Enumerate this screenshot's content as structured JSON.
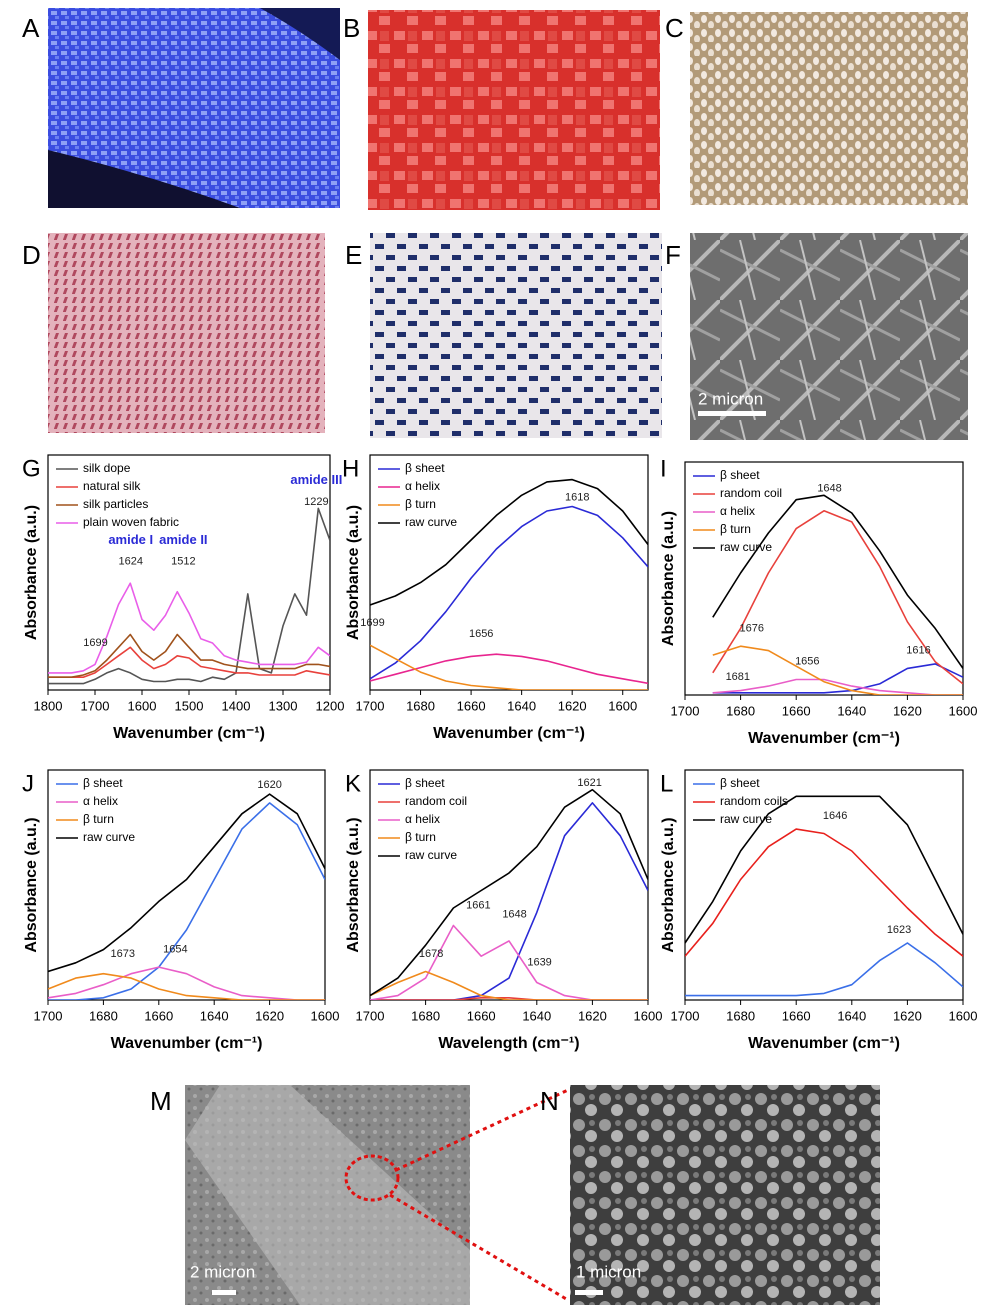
{
  "image_panels": [
    {
      "label": "A"
    },
    {
      "label": "B"
    },
    {
      "label": "C"
    },
    {
      "label": "D"
    },
    {
      "label": "E"
    },
    {
      "label": "F",
      "scale": "2 micron"
    },
    {
      "label": "M",
      "scale": "2 micron"
    },
    {
      "label": "N",
      "scale": "1 micron"
    }
  ],
  "chart_data": [
    {
      "type": "line",
      "panel": "G",
      "xlabel": "Wavenumber (cm⁻¹)",
      "ylabel": "Absorbance (a.u.)",
      "x": [
        1800,
        1775,
        1750,
        1725,
        1700,
        1675,
        1650,
        1625,
        1600,
        1575,
        1550,
        1525,
        1500,
        1475,
        1450,
        1425,
        1400,
        1375,
        1350,
        1325,
        1300,
        1275,
        1250,
        1225,
        1200
      ],
      "xlim": [
        1800,
        1200
      ],
      "xticks": [
        1800,
        1700,
        1600,
        1500,
        1400,
        1300,
        1200
      ],
      "ylim": [
        0,
        1.1
      ],
      "series": [
        {
          "name": "silk dope",
          "color": "#555555",
          "values": [
            0.03,
            0.03,
            0.03,
            0.03,
            0.05,
            0.08,
            0.1,
            0.08,
            0.05,
            0.04,
            0.04,
            0.05,
            0.05,
            0.04,
            0.06,
            0.05,
            0.08,
            0.45,
            0.1,
            0.08,
            0.3,
            0.45,
            0.35,
            0.85,
            0.7
          ]
        },
        {
          "name": "natural silk",
          "color": "#e8413c",
          "values": [
            0.06,
            0.06,
            0.06,
            0.06,
            0.08,
            0.12,
            0.16,
            0.2,
            0.14,
            0.1,
            0.12,
            0.16,
            0.15,
            0.11,
            0.1,
            0.09,
            0.08,
            0.08,
            0.07,
            0.07,
            0.07,
            0.07,
            0.09,
            0.08,
            0.07
          ]
        },
        {
          "name": "silk particles",
          "color": "#a0521c",
          "values": [
            0.06,
            0.06,
            0.06,
            0.07,
            0.09,
            0.14,
            0.2,
            0.26,
            0.18,
            0.14,
            0.18,
            0.26,
            0.2,
            0.14,
            0.14,
            0.12,
            0.11,
            0.1,
            0.1,
            0.1,
            0.1,
            0.1,
            0.12,
            0.12,
            0.11
          ]
        },
        {
          "name": "plain woven fabric",
          "color": "#e95ee9",
          "values": [
            0.08,
            0.08,
            0.08,
            0.09,
            0.12,
            0.25,
            0.4,
            0.5,
            0.33,
            0.28,
            0.35,
            0.46,
            0.36,
            0.24,
            0.22,
            0.16,
            0.14,
            0.13,
            0.12,
            0.12,
            0.12,
            0.12,
            0.13,
            0.2,
            0.16
          ]
        }
      ],
      "annotations": [
        {
          "x": 1699,
          "y": 0.22
        },
        {
          "x": 1624,
          "y": 0.6
        },
        {
          "x": 1512,
          "y": 0.6
        },
        {
          "x": 1229,
          "y": 0.88
        },
        {
          "text": "amide I",
          "x": 1624,
          "y": 0.7,
          "color": "#2b2bd6"
        },
        {
          "text": "amide II",
          "x": 1512,
          "y": 0.7,
          "color": "#2b2bd6"
        },
        {
          "text": "amide III",
          "x": 1229,
          "y": 0.98,
          "color": "#2b2bd6"
        }
      ]
    },
    {
      "type": "line",
      "panel": "H",
      "xlabel": "Wavenumber (cm⁻¹)",
      "ylabel": "Absorbance (a.u.)",
      "x": [
        1700,
        1690,
        1680,
        1670,
        1660,
        1650,
        1640,
        1630,
        1620,
        1610,
        1600,
        1590
      ],
      "xlim": [
        1700,
        1590
      ],
      "xticks": [
        1700,
        1680,
        1660,
        1640,
        1620,
        1600
      ],
      "ylim": [
        0,
        1.05
      ],
      "series": [
        {
          "name": "β sheet",
          "color": "#2a2ad6",
          "values": [
            0.05,
            0.12,
            0.22,
            0.35,
            0.5,
            0.63,
            0.73,
            0.8,
            0.82,
            0.78,
            0.68,
            0.55
          ]
        },
        {
          "name": "α helix",
          "color": "#e8258f",
          "values": [
            0.04,
            0.07,
            0.1,
            0.13,
            0.15,
            0.16,
            0.15,
            0.13,
            0.1,
            0.07,
            0.05,
            0.03
          ]
        },
        {
          "name": "β turn",
          "color": "#f08a1c",
          "values": [
            0.2,
            0.14,
            0.08,
            0.04,
            0.02,
            0.01,
            0,
            0,
            0,
            0,
            0,
            0
          ]
        },
        {
          "name": "raw curve",
          "color": "#000000",
          "values": [
            0.38,
            0.42,
            0.48,
            0.56,
            0.67,
            0.78,
            0.87,
            0.93,
            0.94,
            0.9,
            0.8,
            0.65
          ]
        }
      ],
      "annotations": [
        {
          "x": 1618,
          "y": 0.86
        },
        {
          "x": 1656,
          "y": 0.25
        },
        {
          "x": 1699,
          "y": 0.3
        }
      ]
    },
    {
      "type": "line",
      "panel": "I",
      "xlabel": "Wavenumber (cm⁻¹)",
      "ylabel": "Absorbance (a.u.)",
      "x": [
        1690,
        1680,
        1670,
        1660,
        1650,
        1640,
        1630,
        1620,
        1610,
        1600,
        1690
      ],
      "xlim": [
        1700,
        1600
      ],
      "xticks": [
        1700,
        1680,
        1660,
        1640,
        1620,
        1600
      ],
      "ylim": [
        0,
        1.05
      ],
      "series": [
        {
          "name": "β sheet",
          "color": "#2a2ad6",
          "values": [
            0.01,
            0.01,
            0.01,
            0.01,
            0.01,
            0.02,
            0.05,
            0.12,
            0.14,
            0.08,
            null
          ]
        },
        {
          "name": "random coil",
          "color": "#e8413c",
          "values": [
            0.1,
            0.3,
            0.55,
            0.75,
            0.83,
            0.78,
            0.58,
            0.33,
            0.15,
            0.05,
            null
          ]
        },
        {
          "name": "α helix",
          "color": "#e95ec8",
          "values": [
            0.01,
            0.02,
            0.04,
            0.07,
            0.07,
            0.04,
            0.02,
            0.01,
            0,
            0,
            null
          ]
        },
        {
          "name": "β turn",
          "color": "#f08a1c",
          "values": [
            0.18,
            0.22,
            0.2,
            0.13,
            0.06,
            0.02,
            0,
            0,
            0,
            0,
            null
          ]
        },
        {
          "name": "raw curve",
          "color": "#000000",
          "values": [
            0.35,
            0.55,
            0.73,
            0.88,
            0.9,
            0.82,
            0.65,
            0.45,
            0.3,
            0.12,
            null
          ]
        }
      ],
      "annotations": [
        {
          "x": 1648,
          "y": 0.93
        },
        {
          "x": 1676,
          "y": 0.3
        },
        {
          "x": 1656,
          "y": 0.15
        },
        {
          "x": 1681,
          "y": 0.08
        },
        {
          "x": 1616,
          "y": 0.2
        }
      ]
    },
    {
      "type": "line",
      "panel": "J",
      "xlabel": "Wavenumber (cm⁻¹)",
      "ylabel": "Absorbance (a.u.)",
      "x": [
        1700,
        1690,
        1680,
        1670,
        1660,
        1650,
        1640,
        1630,
        1620,
        1610,
        1600
      ],
      "xlim": [
        1700,
        1600
      ],
      "xticks": [
        1700,
        1680,
        1660,
        1640,
        1620,
        1600
      ],
      "ylim": [
        0,
        1.05
      ],
      "series": [
        {
          "name": "β sheet",
          "color": "#3a6fe8",
          "values": [
            0,
            0,
            0.01,
            0.05,
            0.15,
            0.32,
            0.55,
            0.78,
            0.9,
            0.8,
            0.55
          ]
        },
        {
          "name": "α helix",
          "color": "#e95ec8",
          "values": [
            0.01,
            0.03,
            0.07,
            0.12,
            0.15,
            0.12,
            0.06,
            0.02,
            0.01,
            0,
            0
          ]
        },
        {
          "name": "β turn",
          "color": "#f08a1c",
          "values": [
            0.05,
            0.1,
            0.12,
            0.1,
            0.05,
            0.02,
            0.01,
            0,
            0,
            0,
            0
          ]
        },
        {
          "name": "raw curve",
          "color": "#000000",
          "values": [
            0.13,
            0.17,
            0.23,
            0.33,
            0.45,
            0.55,
            0.7,
            0.85,
            0.94,
            0.85,
            0.6
          ]
        }
      ],
      "annotations": [
        {
          "x": 1620,
          "y": 0.98
        },
        {
          "x": 1673,
          "y": 0.21
        },
        {
          "x": 1654,
          "y": 0.23
        }
      ]
    },
    {
      "type": "line",
      "panel": "K",
      "xlabel": "Wavelength (cm⁻¹)",
      "ylabel": "Absorbance (a.u.)",
      "x": [
        1700,
        1690,
        1680,
        1670,
        1660,
        1650,
        1640,
        1630,
        1620,
        1610,
        1600
      ],
      "xlim": [
        1700,
        1600
      ],
      "xticks": [
        1700,
        1680,
        1660,
        1640,
        1620,
        1600
      ],
      "ylim": [
        0,
        1.05
      ],
      "series": [
        {
          "name": "β  sheet",
          "color": "#2a2ad6",
          "values": [
            0,
            0,
            0,
            0,
            0.02,
            0.1,
            0.4,
            0.75,
            0.9,
            0.75,
            0.5
          ]
        },
        {
          "name": "random coil",
          "color": "#e8413c",
          "values": [
            0,
            0,
            0,
            0,
            0.01,
            0.01,
            0,
            0,
            0,
            0,
            0
          ]
        },
        {
          "name": "α helix",
          "color": "#e95ec8",
          "values": [
            0,
            0.02,
            0.1,
            0.34,
            0.2,
            0.27,
            0.08,
            0.02,
            0,
            0,
            0
          ]
        },
        {
          "name": "β turn",
          "color": "#f08a1c",
          "values": [
            0.02,
            0.08,
            0.13,
            0.08,
            0.02,
            0,
            0,
            0,
            0,
            0,
            0
          ]
        },
        {
          "name": "raw curve",
          "color": "#000000",
          "values": [
            0.02,
            0.1,
            0.25,
            0.42,
            0.5,
            0.58,
            0.7,
            0.88,
            0.96,
            0.85,
            0.55
          ]
        }
      ],
      "annotations": [
        {
          "x": 1621,
          "y": 0.99
        },
        {
          "x": 1678,
          "y": 0.21
        },
        {
          "x": 1661,
          "y": 0.43
        },
        {
          "x": 1648,
          "y": 0.39
        },
        {
          "x": 1639,
          "y": 0.17
        }
      ]
    },
    {
      "type": "line",
      "panel": "L",
      "xlabel": "Wavenumber (cm⁻¹)",
      "ylabel": "Absorbance (a.u.)",
      "x": [
        1700,
        1690,
        1680,
        1670,
        1660,
        1650,
        1640,
        1630,
        1620,
        1610,
        1600
      ],
      "xlim": [
        1700,
        1600
      ],
      "xticks": [
        1700,
        1680,
        1660,
        1640,
        1620,
        1600
      ],
      "ylim": [
        0,
        1.05
      ],
      "series": [
        {
          "name": "β sheet",
          "color": "#3a6fe8",
          "values": [
            0.02,
            0.02,
            0.02,
            0.02,
            0.02,
            0.03,
            0.07,
            0.18,
            0.26,
            0.17,
            0.06
          ]
        },
        {
          "name": "random coils",
          "color": "#e8201c",
          "values": [
            0.2,
            0.35,
            0.55,
            0.7,
            0.78,
            0.76,
            0.68,
            0.55,
            0.42,
            0.3,
            0.2
          ]
        },
        {
          "name": "raw curve",
          "color": "#000000",
          "values": [
            0.26,
            0.45,
            0.68,
            0.85,
            0.93,
            0.93,
            0.93,
            0.93,
            0.8,
            0.55,
            0.3
          ]
        }
      ],
      "annotations": [
        {
          "x": 1646,
          "y": 0.84
        },
        {
          "x": 1623,
          "y": 0.32
        }
      ]
    }
  ]
}
